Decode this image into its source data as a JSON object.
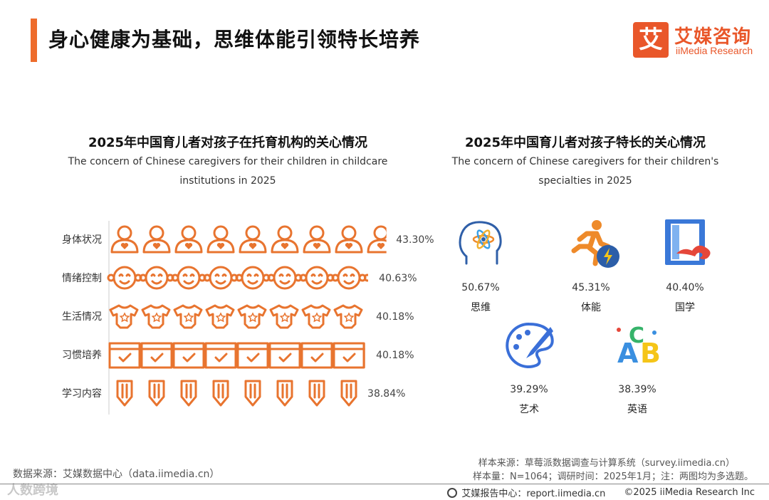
{
  "page": {
    "title": "身心健康为基础，思维体能引领特长培养",
    "accent_color": "#ee6c2c"
  },
  "logo": {
    "mark": "艾",
    "cn": "艾媒咨询",
    "en": "iiMedia Research"
  },
  "chart_data": [
    {
      "type": "bar",
      "title": "2025年中国育儿者对孩子在托育机构的关心情况",
      "subtitle_lines": [
        "The concern of Chinese caregivers for their children in childcare",
        "institutions in 2025"
      ],
      "categories": [
        "身体状况",
        "情绪控制",
        "生活情况",
        "习惯培养",
        "学习内容"
      ],
      "values": [
        43.3,
        40.63,
        40.18,
        40.18,
        38.84
      ],
      "value_labels": [
        "43.30%",
        "40.63%",
        "40.18%",
        "40.18%",
        "38.84%"
      ],
      "icons": [
        "person-heart-icon",
        "baby-face-icon",
        "onesie-icon",
        "calendar-check-icon",
        "pencil-icon"
      ],
      "color": "#e8742f"
    },
    {
      "type": "table",
      "title": "2025年中国育儿者对孩子特长的关心情况",
      "subtitle_lines": [
        "The concern of Chinese caregivers for their children's",
        "specialties in 2025"
      ],
      "items": [
        {
          "label": "思维",
          "value_label": "50.67%",
          "value": 50.67,
          "icon": "brain-atom-icon"
        },
        {
          "label": "体能",
          "value_label": "45.31%",
          "value": 45.31,
          "icon": "runner-icon"
        },
        {
          "label": "国学",
          "value_label": "40.40%",
          "value": 40.4,
          "icon": "book-cloud-icon"
        },
        {
          "label": "艺术",
          "value_label": "39.29%",
          "value": 39.29,
          "icon": "palette-icon"
        },
        {
          "label": "英语",
          "value_label": "38.39%",
          "value": 38.39,
          "icon": "abc-letters-icon"
        }
      ]
    }
  ],
  "footer": {
    "source_left": "数据来源：艾媒数据中心（data.iimedia.cn）",
    "watermark": "人数跨境",
    "sample_source": "样本来源：草莓派数据调查与计算系统（survey.iimedia.cn）",
    "sample_info": "样本量：N=1064；调研时间：2025年1月；注：两图均为多选题。",
    "report_center": "艾媒报告中心：report.iimedia.cn",
    "copyright": "©2025  iiMedia Research  Inc"
  }
}
